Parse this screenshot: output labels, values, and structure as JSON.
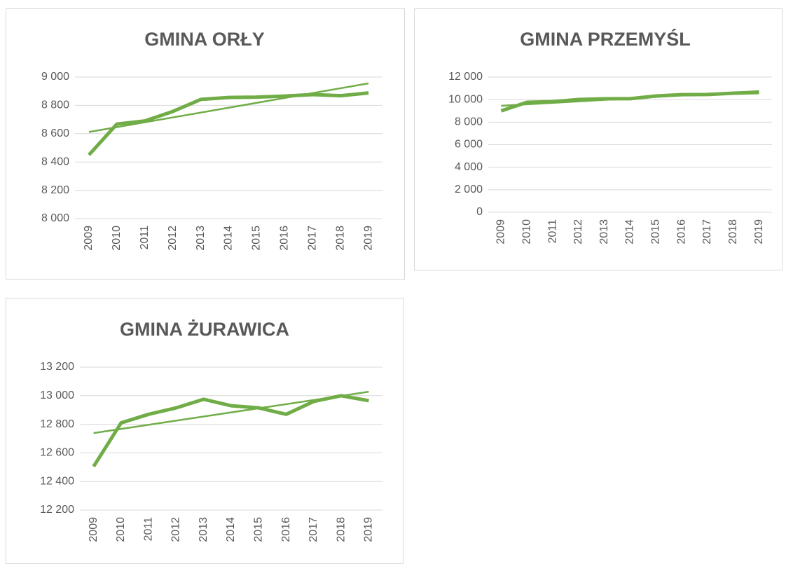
{
  "chart_data": [
    {
      "type": "line",
      "title": "GMINA ORŁY",
      "categories": [
        "2009",
        "2010",
        "2011",
        "2012",
        "2013",
        "2014",
        "2015",
        "2016",
        "2017",
        "2018",
        "2019"
      ],
      "values": [
        8450,
        8668,
        8690,
        8757,
        8842,
        8856,
        8858,
        8866,
        8876,
        8868,
        8888
      ],
      "color": "#70ad47",
      "trendline": true,
      "grid": true,
      "ylim": [
        8000,
        9000
      ],
      "yticks": [
        {
          "value": 8000,
          "label": "8 000"
        },
        {
          "value": 8200,
          "label": "8 200"
        },
        {
          "value": 8400,
          "label": "8 400"
        },
        {
          "value": 8600,
          "label": "8 600"
        },
        {
          "value": 8800,
          "label": "8 800"
        },
        {
          "value": 9000,
          "label": "9 000"
        }
      ]
    },
    {
      "type": "line",
      "title": "GMINA PRZEMYŚL",
      "categories": [
        "2009",
        "2010",
        "2011",
        "2012",
        "2013",
        "2014",
        "2015",
        "2016",
        "2017",
        "2018",
        "2019"
      ],
      "values": [
        9000,
        9760,
        9820,
        10010,
        10070,
        10080,
        10320,
        10440,
        10450,
        10570,
        10630
      ],
      "color": "#70ad47",
      "trendline": true,
      "grid": true,
      "ylim": [
        0,
        12000
      ],
      "yticks": [
        0,
        {
          "value": 2000,
          "label": "2 000"
        },
        {
          "value": 4000,
          "label": "4 000"
        },
        {
          "value": 6000,
          "label": "6 000"
        },
        {
          "value": 8000,
          "label": "8 000"
        },
        {
          "value": 10000,
          "label": "10 000"
        },
        {
          "value": 12000,
          "label": "12 000"
        }
      ]
    },
    {
      "type": "line",
      "title": "GMINA ŻURAWICA",
      "categories": [
        "2009",
        "2010",
        "2011",
        "2012",
        "2013",
        "2014",
        "2015",
        "2016",
        "2017",
        "2018",
        "2019"
      ],
      "values": [
        12505,
        12810,
        12870,
        12915,
        12975,
        12930,
        12915,
        12870,
        12960,
        13000,
        12965
      ],
      "color": "#70ad47",
      "trendline": true,
      "grid": true,
      "ylim": [
        12200,
        13200
      ],
      "yticks": [
        {
          "value": 12200,
          "label": "12 200"
        },
        {
          "value": 12400,
          "label": "12 400"
        },
        {
          "value": 12600,
          "label": "12 600"
        },
        {
          "value": 12800,
          "label": "12 800"
        },
        {
          "value": 13000,
          "label": "13 000"
        },
        {
          "value": 13200,
          "label": "13 200"
        }
      ]
    }
  ]
}
